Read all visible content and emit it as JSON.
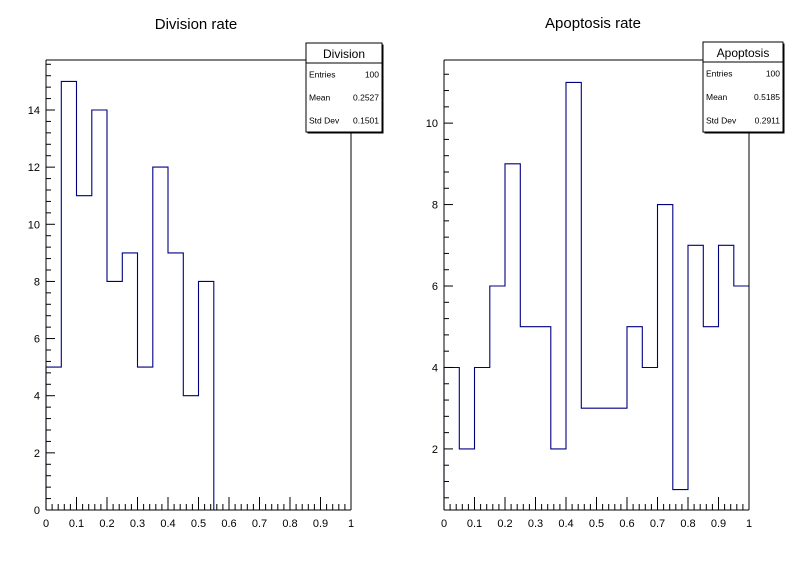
{
  "colors": {
    "histogram_line": "#000080",
    "frame": "#000000",
    "background": "#ffffff"
  },
  "chart_data": [
    {
      "type": "bar",
      "title": "Division rate",
      "xlabel": "",
      "ylabel": "",
      "xlim": [
        0,
        1
      ],
      "ylim": [
        0,
        15.75
      ],
      "x_ticks": [
        "0",
        "0.1",
        "0.2",
        "0.3",
        "0.4",
        "0.5",
        "0.6",
        "0.7",
        "0.8",
        "0.9",
        "1"
      ],
      "y_ticks": [
        "0",
        "2",
        "4",
        "6",
        "8",
        "10",
        "12",
        "14"
      ],
      "y_tick_values": [
        0,
        2,
        4,
        6,
        8,
        10,
        12,
        14
      ],
      "bin_width": 0.05,
      "bin_edges_start": 0,
      "values": [
        5,
        15,
        11,
        14,
        8,
        9,
        5,
        12,
        9,
        4,
        8,
        0,
        0,
        0,
        0,
        0,
        0,
        0,
        0,
        0
      ],
      "grid": false,
      "legend_placement": "top-right",
      "stats": {
        "name": "Division",
        "rows": [
          {
            "label": "Entries",
            "value": "100"
          },
          {
            "label": "Mean",
            "value": "0.2527"
          },
          {
            "label": "Std Dev",
            "value": "0.1501"
          }
        ]
      }
    },
    {
      "type": "bar",
      "title": "Apoptosis rate",
      "xlabel": "",
      "ylabel": "",
      "xlim": [
        0,
        1
      ],
      "ylim": [
        0.5,
        11.55
      ],
      "x_ticks": [
        "0",
        "0.1",
        "0.2",
        "0.3",
        "0.4",
        "0.5",
        "0.6",
        "0.7",
        "0.8",
        "0.9",
        "1"
      ],
      "y_ticks": [
        "2",
        "4",
        "6",
        "8",
        "10"
      ],
      "y_tick_values": [
        2,
        4,
        6,
        8,
        10
      ],
      "bin_width": 0.05,
      "bin_edges_start": 0,
      "values": [
        4,
        2,
        4,
        6,
        9,
        5,
        5,
        2,
        11,
        3,
        3,
        3,
        5,
        4,
        8,
        1,
        7,
        5,
        7,
        6
      ],
      "grid": false,
      "legend_placement": "top-right",
      "stats": {
        "name": "Apoptosis",
        "rows": [
          {
            "label": "Entries",
            "value": "100"
          },
          {
            "label": "Mean",
            "value": "0.5185"
          },
          {
            "label": "Std Dev",
            "value": "0.2911"
          }
        ]
      }
    }
  ]
}
